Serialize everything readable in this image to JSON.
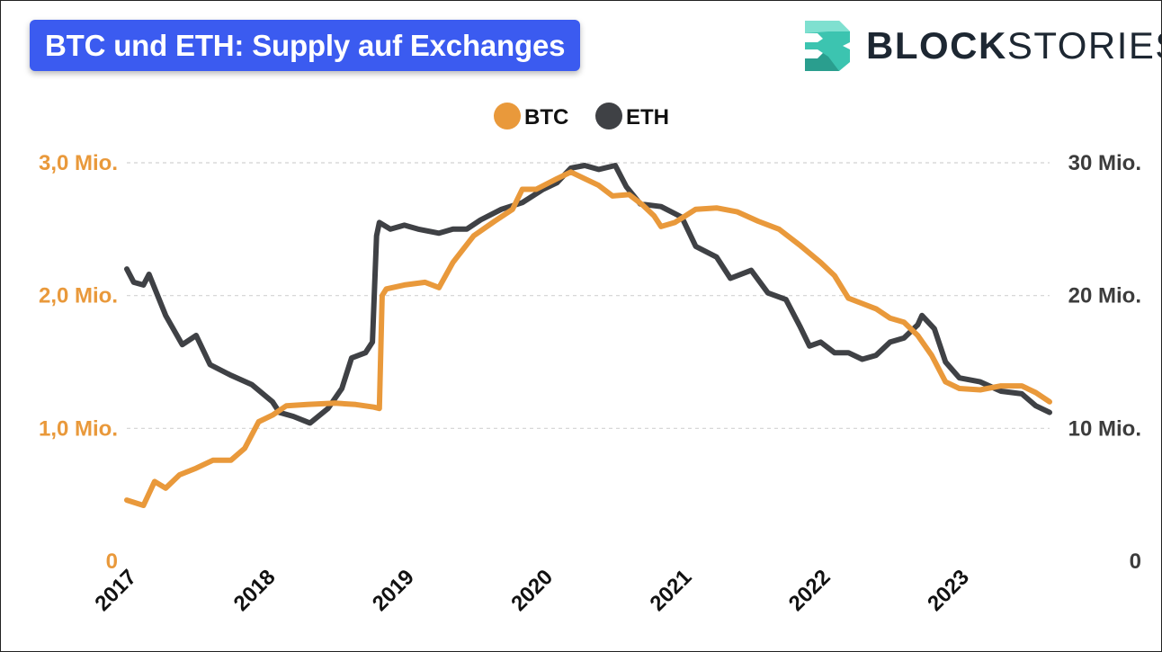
{
  "header": {
    "title": "BTC und ETH: Supply auf Exchanges",
    "brand_bold": "BLOCK",
    "brand_light": "STORIES"
  },
  "colors": {
    "btc": "#E9993B",
    "eth": "#3F4145",
    "title_bg": "#3B5BF0",
    "logo_teal": "#3CC4B0",
    "logo_dark": "#1D2732"
  },
  "chart_data": {
    "type": "line",
    "title": "BTC und ETH: Supply auf Exchanges",
    "legend": [
      "BTC",
      "ETH"
    ],
    "legend_position": "top-center",
    "grid": true,
    "x_range": [
      2017.0,
      2023.65
    ],
    "x_ticks": [
      2017,
      2018,
      2019,
      2020,
      2021,
      2022,
      2023
    ],
    "x_tick_labels": [
      "2017",
      "2018",
      "2019",
      "2020",
      "2021",
      "2022",
      "2023"
    ],
    "y_left": {
      "label": "BTC",
      "range": [
        0,
        3000000
      ],
      "ticks": [
        0,
        1000000,
        2000000,
        3000000
      ],
      "tick_labels": [
        "0",
        "1,0 Mio.",
        "2,0 Mio.",
        "3,0 Mio."
      ]
    },
    "y_right": {
      "label": "ETH",
      "range": [
        0,
        30000000
      ],
      "ticks": [
        0,
        10000000,
        20000000,
        30000000
      ],
      "tick_labels": [
        "0",
        "10 Mio.",
        "20 Mio.",
        "30 Mio."
      ]
    },
    "series": [
      {
        "name": "BTC",
        "axis": "left",
        "points": [
          [
            2017.0,
            460000
          ],
          [
            2017.12,
            420000
          ],
          [
            2017.2,
            600000
          ],
          [
            2017.28,
            550000
          ],
          [
            2017.38,
            650000
          ],
          [
            2017.5,
            700000
          ],
          [
            2017.62,
            760000
          ],
          [
            2017.75,
            760000
          ],
          [
            2017.85,
            850000
          ],
          [
            2017.95,
            1050000
          ],
          [
            2018.05,
            1100000
          ],
          [
            2018.15,
            1170000
          ],
          [
            2018.3,
            1180000
          ],
          [
            2018.5,
            1190000
          ],
          [
            2018.65,
            1180000
          ],
          [
            2018.78,
            1160000
          ],
          [
            2018.82,
            1150000
          ],
          [
            2018.84,
            2000000
          ],
          [
            2018.87,
            2050000
          ],
          [
            2019.0,
            2080000
          ],
          [
            2019.15,
            2100000
          ],
          [
            2019.25,
            2060000
          ],
          [
            2019.35,
            2250000
          ],
          [
            2019.5,
            2450000
          ],
          [
            2019.65,
            2560000
          ],
          [
            2019.78,
            2650000
          ],
          [
            2019.85,
            2800000
          ],
          [
            2019.95,
            2800000
          ],
          [
            2020.1,
            2880000
          ],
          [
            2020.2,
            2930000
          ],
          [
            2020.3,
            2880000
          ],
          [
            2020.4,
            2830000
          ],
          [
            2020.5,
            2750000
          ],
          [
            2020.62,
            2760000
          ],
          [
            2020.72,
            2680000
          ],
          [
            2020.8,
            2600000
          ],
          [
            2020.85,
            2520000
          ],
          [
            2020.95,
            2550000
          ],
          [
            2021.1,
            2650000
          ],
          [
            2021.25,
            2660000
          ],
          [
            2021.4,
            2630000
          ],
          [
            2021.55,
            2560000
          ],
          [
            2021.7,
            2500000
          ],
          [
            2021.85,
            2380000
          ],
          [
            2022.0,
            2250000
          ],
          [
            2022.1,
            2150000
          ],
          [
            2022.2,
            1980000
          ],
          [
            2022.3,
            1940000
          ],
          [
            2022.4,
            1900000
          ],
          [
            2022.5,
            1830000
          ],
          [
            2022.6,
            1800000
          ],
          [
            2022.7,
            1700000
          ],
          [
            2022.8,
            1550000
          ],
          [
            2022.9,
            1350000
          ],
          [
            2023.0,
            1300000
          ],
          [
            2023.15,
            1290000
          ],
          [
            2023.3,
            1320000
          ],
          [
            2023.45,
            1320000
          ],
          [
            2023.55,
            1270000
          ],
          [
            2023.65,
            1200000
          ]
        ]
      },
      {
        "name": "ETH",
        "axis": "right",
        "points": [
          [
            2017.0,
            22000000
          ],
          [
            2017.05,
            21000000
          ],
          [
            2017.12,
            20800000
          ],
          [
            2017.16,
            21600000
          ],
          [
            2017.28,
            18500000
          ],
          [
            2017.4,
            16300000
          ],
          [
            2017.5,
            17000000
          ],
          [
            2017.6,
            14800000
          ],
          [
            2017.75,
            14000000
          ],
          [
            2017.9,
            13300000
          ],
          [
            2018.05,
            12000000
          ],
          [
            2018.1,
            11200000
          ],
          [
            2018.2,
            10900000
          ],
          [
            2018.32,
            10400000
          ],
          [
            2018.45,
            11500000
          ],
          [
            2018.55,
            13000000
          ],
          [
            2018.62,
            15300000
          ],
          [
            2018.72,
            15700000
          ],
          [
            2018.77,
            16500000
          ],
          [
            2018.8,
            24500000
          ],
          [
            2018.82,
            25500000
          ],
          [
            2018.9,
            25000000
          ],
          [
            2019.0,
            25300000
          ],
          [
            2019.1,
            25000000
          ],
          [
            2019.25,
            24700000
          ],
          [
            2019.35,
            25000000
          ],
          [
            2019.45,
            25000000
          ],
          [
            2019.55,
            25700000
          ],
          [
            2019.7,
            26500000
          ],
          [
            2019.85,
            27000000
          ],
          [
            2020.0,
            28000000
          ],
          [
            2020.1,
            28500000
          ],
          [
            2020.2,
            29600000
          ],
          [
            2020.3,
            29800000
          ],
          [
            2020.4,
            29500000
          ],
          [
            2020.52,
            29800000
          ],
          [
            2020.6,
            28200000
          ],
          [
            2020.7,
            26900000
          ],
          [
            2020.85,
            26700000
          ],
          [
            2021.0,
            25900000
          ],
          [
            2021.1,
            23700000
          ],
          [
            2021.25,
            22900000
          ],
          [
            2021.35,
            21300000
          ],
          [
            2021.5,
            21900000
          ],
          [
            2021.62,
            20200000
          ],
          [
            2021.75,
            19700000
          ],
          [
            2021.85,
            17700000
          ],
          [
            2021.92,
            16200000
          ],
          [
            2022.0,
            16500000
          ],
          [
            2022.1,
            15700000
          ],
          [
            2022.2,
            15700000
          ],
          [
            2022.3,
            15200000
          ],
          [
            2022.4,
            15500000
          ],
          [
            2022.5,
            16500000
          ],
          [
            2022.6,
            16800000
          ],
          [
            2022.7,
            17800000
          ],
          [
            2022.73,
            18500000
          ],
          [
            2022.82,
            17500000
          ],
          [
            2022.9,
            15000000
          ],
          [
            2023.0,
            13800000
          ],
          [
            2023.15,
            13500000
          ],
          [
            2023.3,
            12800000
          ],
          [
            2023.45,
            12600000
          ],
          [
            2023.55,
            11700000
          ],
          [
            2023.65,
            11200000
          ]
        ]
      }
    ]
  }
}
